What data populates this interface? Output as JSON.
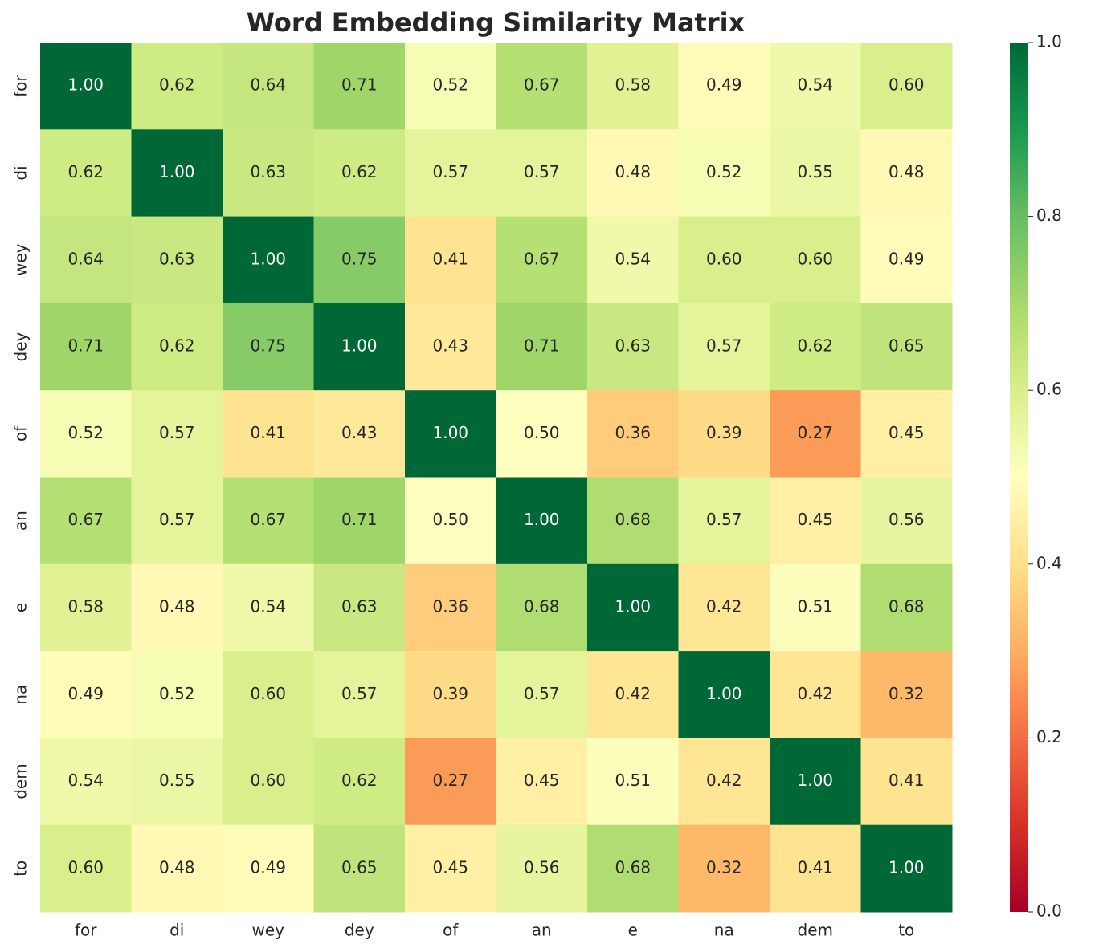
{
  "chart_data": {
    "type": "heatmap",
    "title": "Word Embedding Similarity Matrix",
    "categories": [
      "for",
      "di",
      "wey",
      "dey",
      "of",
      "an",
      "e",
      "na",
      "dem",
      "to"
    ],
    "y_categories": [
      "for",
      "di",
      "wey",
      "dey",
      "of",
      "an",
      "e",
      "na",
      "dem",
      "to"
    ],
    "values": [
      [
        1,
        0.62,
        0.64,
        0.71,
        0.52,
        0.67,
        0.58,
        0.49,
        0.54,
        0.6
      ],
      [
        0.62,
        1,
        0.63,
        0.62,
        0.57,
        0.57,
        0.48,
        0.52,
        0.55,
        0.48
      ],
      [
        0.64,
        0.63,
        1,
        0.75,
        0.41,
        0.67,
        0.54,
        0.6,
        0.6,
        0.49
      ],
      [
        0.71,
        0.62,
        0.75,
        1,
        0.43,
        0.71,
        0.63,
        0.57,
        0.62,
        0.65
      ],
      [
        0.52,
        0.57,
        0.41,
        0.43,
        1,
        0.5,
        0.36,
        0.39,
        0.27,
        0.45
      ],
      [
        0.67,
        0.57,
        0.67,
        0.71,
        0.5,
        1,
        0.68,
        0.57,
        0.45,
        0.56
      ],
      [
        0.58,
        0.48,
        0.54,
        0.63,
        0.36,
        0.68,
        1,
        0.42,
        0.51,
        0.68
      ],
      [
        0.49,
        0.52,
        0.6,
        0.57,
        0.39,
        0.57,
        0.42,
        1,
        0.42,
        0.32
      ],
      [
        0.54,
        0.55,
        0.6,
        0.62,
        0.27,
        0.45,
        0.51,
        0.42,
        1,
        0.41
      ],
      [
        0.6,
        0.48,
        0.49,
        0.65,
        0.45,
        0.56,
        0.68,
        0.32,
        0.41,
        1
      ]
    ],
    "value_labels": [
      [
        "1.00",
        "0.62",
        "0.64",
        "0.71",
        "0.52",
        "0.67",
        "0.58",
        "0.49",
        "0.54",
        "0.60"
      ],
      [
        "0.62",
        "1.00",
        "0.63",
        "0.62",
        "0.57",
        "0.57",
        "0.48",
        "0.52",
        "0.55",
        "0.48"
      ],
      [
        "0.64",
        "0.63",
        "1.00",
        "0.75",
        "0.41",
        "0.67",
        "0.54",
        "0.60",
        "0.60",
        "0.49"
      ],
      [
        "0.71",
        "0.62",
        "0.75",
        "1.00",
        "0.43",
        "0.71",
        "0.63",
        "0.57",
        "0.62",
        "0.65"
      ],
      [
        "0.52",
        "0.57",
        "0.41",
        "0.43",
        "1.00",
        "0.50",
        "0.36",
        "0.39",
        "0.27",
        "0.45"
      ],
      [
        "0.67",
        "0.57",
        "0.67",
        "0.71",
        "0.50",
        "1.00",
        "0.68",
        "0.57",
        "0.45",
        "0.56"
      ],
      [
        "0.58",
        "0.48",
        "0.54",
        "0.63",
        "0.36",
        "0.68",
        "1.00",
        "0.42",
        "0.51",
        "0.68"
      ],
      [
        "0.49",
        "0.52",
        "0.60",
        "0.57",
        "0.39",
        "0.57",
        "0.42",
        "1.00",
        "0.42",
        "0.32"
      ],
      [
        "0.54",
        "0.55",
        "0.60",
        "0.62",
        "0.27",
        "0.45",
        "0.51",
        "0.42",
        "1.00",
        "0.41"
      ],
      [
        "0.60",
        "0.48",
        "0.49",
        "0.65",
        "0.45",
        "0.56",
        "0.68",
        "0.32",
        "0.41",
        "1.00"
      ]
    ],
    "colormap": [
      "#a50026",
      "#d73027",
      "#f46d43",
      "#fdae61",
      "#fee08b",
      "#ffffbf",
      "#d9ef8b",
      "#a6d96a",
      "#66bd63",
      "#1a9850",
      "#006837"
    ],
    "zlim": [
      0,
      1
    ],
    "zticks": [
      {
        "value": 0,
        "label": "0.0"
      },
      0.2,
      0.4,
      0.6,
      0.8,
      {
        "value": 1,
        "label": "1.0"
      }
    ]
  }
}
